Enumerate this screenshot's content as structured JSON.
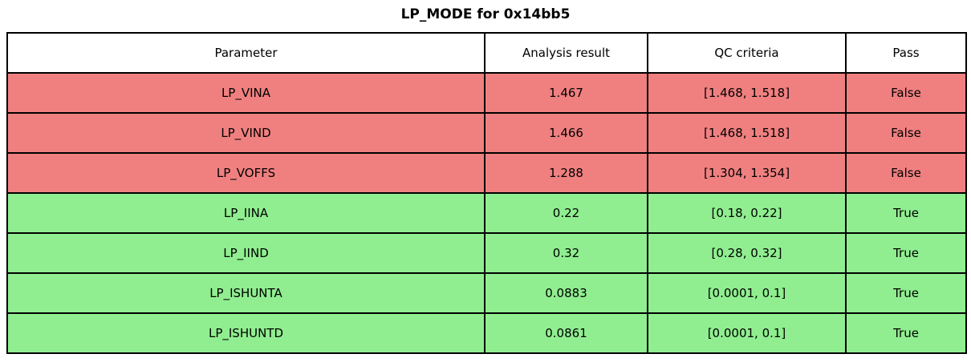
{
  "title": "LP_MODE for 0x14bb5",
  "colors": {
    "fail_row": "#f08080",
    "pass_row": "#90ee90",
    "header_bg": "#ffffff",
    "border": "#000000",
    "text": "#000000"
  },
  "table": {
    "columns": [
      "Parameter",
      "Analysis result",
      "QC criteria",
      "Pass"
    ],
    "rows": [
      {
        "parameter": "LP_VINA",
        "analysis_result": "1.467",
        "qc_criteria": "[1.468, 1.518]",
        "pass": "False",
        "status": "fail"
      },
      {
        "parameter": "LP_VIND",
        "analysis_result": "1.466",
        "qc_criteria": "[1.468, 1.518]",
        "pass": "False",
        "status": "fail"
      },
      {
        "parameter": "LP_VOFFS",
        "analysis_result": "1.288",
        "qc_criteria": "[1.304, 1.354]",
        "pass": "False",
        "status": "fail"
      },
      {
        "parameter": "LP_IINA",
        "analysis_result": "0.22",
        "qc_criteria": "[0.18, 0.22]",
        "pass": "True",
        "status": "pass"
      },
      {
        "parameter": "LP_IIND",
        "analysis_result": "0.32",
        "qc_criteria": "[0.28, 0.32]",
        "pass": "True",
        "status": "pass"
      },
      {
        "parameter": "LP_ISHUNTA",
        "analysis_result": "0.0883",
        "qc_criteria": "[0.0001, 0.1]",
        "pass": "True",
        "status": "pass"
      },
      {
        "parameter": "LP_ISHUNTD",
        "analysis_result": "0.0861",
        "qc_criteria": "[0.0001, 0.1]",
        "pass": "True",
        "status": "pass"
      }
    ]
  },
  "chart_data": {
    "type": "table",
    "title": "LP_MODE for 0x14bb5",
    "columns": [
      "Parameter",
      "Analysis result",
      "QC criteria",
      "Pass"
    ],
    "rows": [
      [
        "LP_VINA",
        1.467,
        [
          1.468,
          1.518
        ],
        false
      ],
      [
        "LP_VIND",
        1.466,
        [
          1.468,
          1.518
        ],
        false
      ],
      [
        "LP_VOFFS",
        1.288,
        [
          1.304,
          1.354
        ],
        false
      ],
      [
        "LP_IINA",
        0.22,
        [
          0.18,
          0.22
        ],
        true
      ],
      [
        "LP_IIND",
        0.32,
        [
          0.28,
          0.32
        ],
        true
      ],
      [
        "LP_ISHUNTA",
        0.0883,
        [
          0.0001,
          0.1
        ],
        true
      ],
      [
        "LP_ISHUNTD",
        0.0861,
        [
          0.0001,
          0.1
        ],
        true
      ]
    ],
    "row_colors": [
      "#f08080",
      "#f08080",
      "#f08080",
      "#90ee90",
      "#90ee90",
      "#90ee90",
      "#90ee90"
    ],
    "legend_position": "none",
    "grid": "full-borders"
  }
}
